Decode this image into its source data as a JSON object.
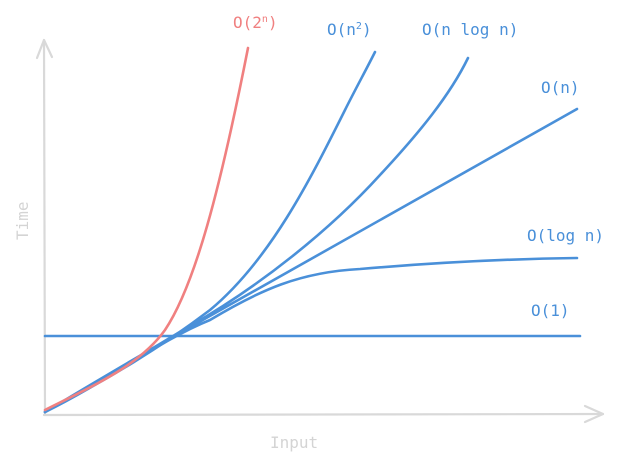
{
  "axes": {
    "x_label": "Input",
    "y_label": "Time",
    "color": "#d9d9d9"
  },
  "curves": [
    {
      "id": "exponential",
      "label_base": "O(2",
      "label_sup": "n",
      "label_end": ")",
      "color": "#f08080"
    },
    {
      "id": "quadratic",
      "label_base": "O(n",
      "label_sup": "2",
      "label_end": ")",
      "color": "#4a90d9"
    },
    {
      "id": "linearithmic",
      "label": "O(n log n)",
      "color": "#4a90d9"
    },
    {
      "id": "linear",
      "label": "O(n)",
      "color": "#4a90d9"
    },
    {
      "id": "logarithmic",
      "label": "O(log n)",
      "color": "#4a90d9"
    },
    {
      "id": "constant",
      "label": "O(1)",
      "color": "#4a90d9"
    }
  ]
}
